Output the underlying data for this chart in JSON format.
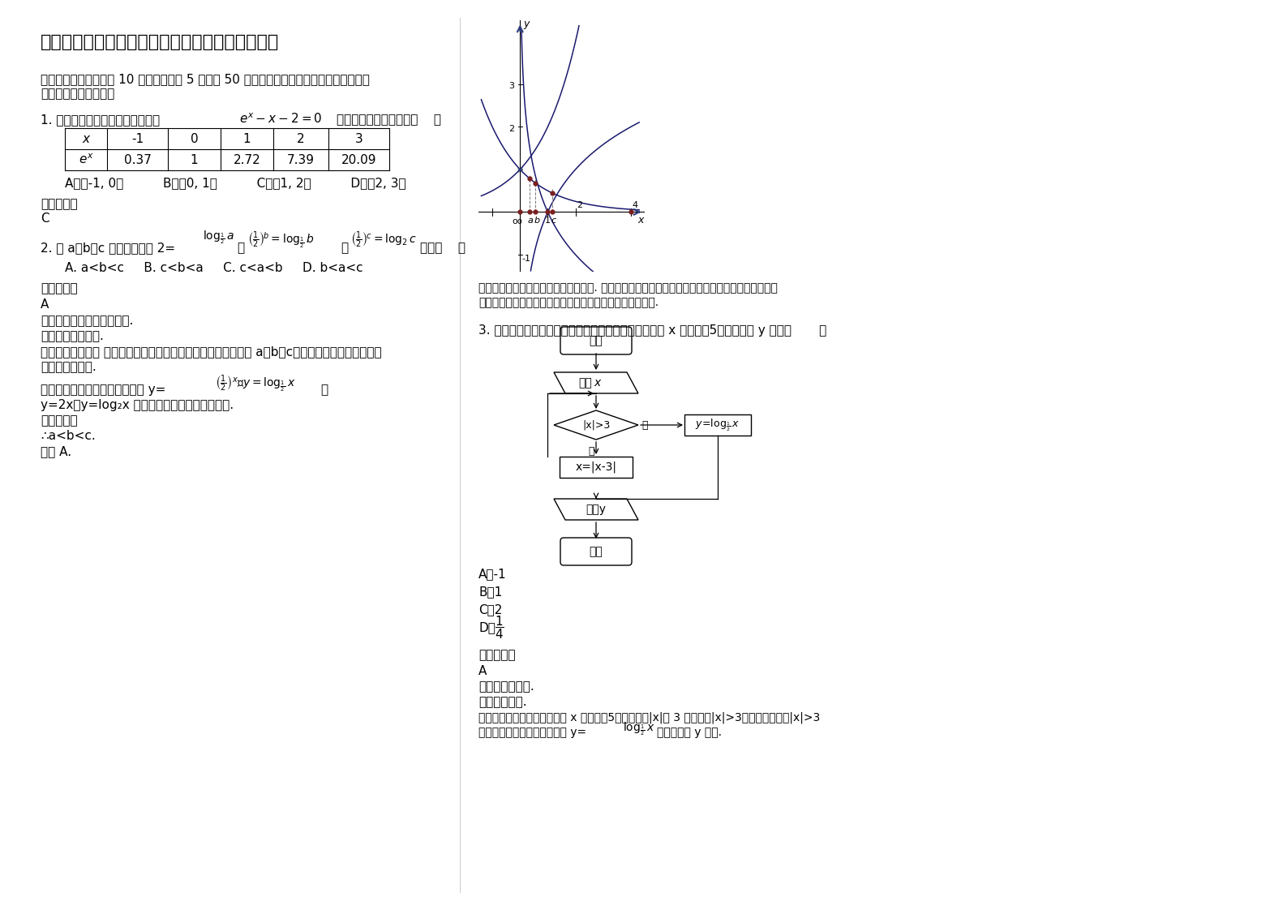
{
  "title": "安徽省黄山市天都中学高一数学文期末试卷含解析",
  "bg_color": "#ffffff",
  "section1_line1": "一、选择题：本大题共 10 小题，每小题 5 分，共 50 分。在每小题给出的四个选项中，只有",
  "section1_line2": "是一个符合题目要求的",
  "q1_line1": "1. 根据表中的数据，可以断定方程",
  "q1_suffix": "的一个根所在的区间是（    ）",
  "table_x_vals": [
    "-1",
    "0",
    "1",
    "2",
    "3"
  ],
  "table_ex_vals": [
    "0.37",
    "1",
    "2.72",
    "7.39",
    "20.09"
  ],
  "q1_options": "A．（-1, 0）          B．（0, 1）          C．（1, 2）          D．（2, 3）",
  "q1_ans_label": "参考答案：",
  "q1_ans": "C",
  "q2_prefix": "2. 设 a，b，c 均为正数，且 2=",
  "q2_suffix": "，则（    ）",
  "q2_options": "A. a<b<c     B. c<b<a     C. c<a<b     D. b<a<c",
  "q2_ans_label": "参考答案：",
  "q2_ans": "A",
  "q2_kd": "【考点】对数值大小的比较.",
  "q2_zt": "【专题】数形结合.",
  "q2_fx1": "【分析】比较大小 可以借助图象进行比较，观察题设中的三个数 a，b，c，可以借助函数图象的交点",
  "q2_fx2": "的位置进行比较.",
  "q2_jd_pre": "【解答】解：分别作出四个函数 y=",
  "q2_jd2": "y=2x，y=log₂x 的图象，观察它们的交点情况.",
  "q2_jd3": "由图象知：",
  "q2_jd4": "∴a<b<c.",
  "q2_jd5": "故选 A.",
  "note1": "【点评】本题考点是对数值大小的比较. 本题比较大小时用到了对数函数和指数函数的图象，比较大",
  "note2": "小的题在方法上应灵活选择，依据具体情况选择合适的方法.",
  "q3_line": "3. 阅读如图所示的程序框图，运行相应的程序，若输入 x 的值为－5，则输出的 y 值是（       ）",
  "q3_A": "A．-1",
  "q3_B": "B．1",
  "q3_C": "C．2",
  "q3_D": "D．",
  "q3_ans_label": "参考答案：",
  "q3_ans": "A",
  "q3_kd": "考点：程序框图.",
  "q3_zt": "专题：图表型.",
  "q3_fx1": "分析：框图输入框中首先输入 x 的值为－5，然后判断|x|与 3 的大小，|x|>3，执行循环体，|x|>3",
  "q3_fx2_pre": "不成立时跳出循环，执行运算 y=",
  "q3_fx2_suf": "，然后输出 y 的值.",
  "fc_start": "开始",
  "fc_input": "输入x",
  "fc_cond": "|x|>3",
  "fc_yes": "是",
  "fc_no": "否",
  "fc_xeq": "x=|x-3|",
  "fc_output": "输出y",
  "fc_end": "结束"
}
